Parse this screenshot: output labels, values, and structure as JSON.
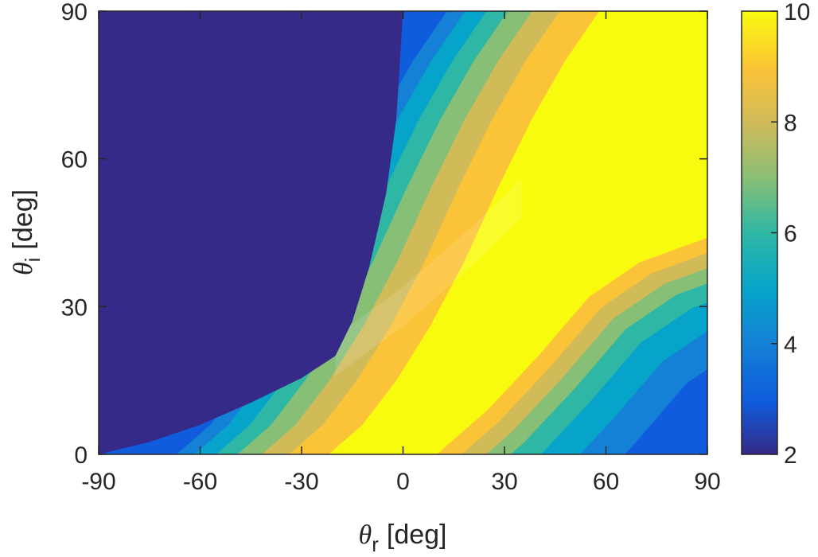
{
  "chart_data": {
    "type": "heatmap",
    "subtype": "filled-contour",
    "x": {
      "label_symbol": "θ",
      "label_subscript": "r",
      "label_unit": "[deg]",
      "range": [
        -90,
        90
      ],
      "ticks": [
        -90,
        -60,
        -30,
        0,
        30,
        60,
        90
      ],
      "tick_labels": [
        "-90",
        "-60",
        "-30",
        "0",
        "30",
        "60",
        "90"
      ]
    },
    "y": {
      "label_symbol": "θ",
      "label_subscript": "i",
      "label_unit": "[deg]",
      "range": [
        0,
        90
      ],
      "ticks": [
        0,
        30,
        60,
        90
      ],
      "tick_labels": [
        "0",
        "30",
        "60",
        "90"
      ]
    },
    "colorbar": {
      "range": [
        2,
        10
      ],
      "ticks": [
        2,
        4,
        6,
        8,
        10
      ],
      "tick_labels": [
        "2",
        "4",
        "6",
        "8",
        "10"
      ],
      "colormap": "parula",
      "location": "right"
    },
    "grid": false,
    "contour_levels": [
      {
        "value": 2.0,
        "color": "#352a87"
      },
      {
        "value": 3.0,
        "color": "#0f5cdd"
      },
      {
        "value": 3.8,
        "color": "#1481d6"
      },
      {
        "value": 4.6,
        "color": "#06a4ca"
      },
      {
        "value": 5.4,
        "color": "#2eb7a4"
      },
      {
        "value": 6.4,
        "color": "#87bf77"
      },
      {
        "value": 7.6,
        "color": "#d1bb59"
      },
      {
        "value": 8.8,
        "color": "#fbc337"
      },
      {
        "value": 10.0,
        "color": "#f9fb0e"
      }
    ],
    "regions": {
      "low_region_boundary": [
        [
          -90,
          0
        ],
        [
          -75,
          2.5
        ],
        [
          -60,
          6
        ],
        [
          -45,
          10.5
        ],
        [
          -30,
          15.5
        ],
        [
          -20,
          20
        ],
        [
          -15,
          27
        ],
        [
          -10,
          38
        ],
        [
          -5,
          53
        ],
        [
          -2,
          68
        ],
        [
          0,
          90
        ]
      ],
      "band_left_centerline": [
        [
          -30,
          0
        ],
        [
          -20,
          6
        ],
        [
          -10,
          15
        ],
        [
          0,
          26
        ],
        [
          10,
          39
        ],
        [
          20,
          54
        ],
        [
          30,
          68
        ],
        [
          40,
          80
        ],
        [
          50,
          90
        ]
      ],
      "band_right_centerline": [
        [
          10,
          0
        ],
        [
          25,
          9
        ],
        [
          40,
          20
        ],
        [
          55,
          32
        ],
        [
          70,
          39
        ],
        [
          90,
          44
        ]
      ],
      "cross_band_centerline": [
        [
          -20,
          20
        ],
        [
          0,
          30
        ],
        [
          20,
          42
        ],
        [
          35,
          52
        ]
      ]
    }
  }
}
